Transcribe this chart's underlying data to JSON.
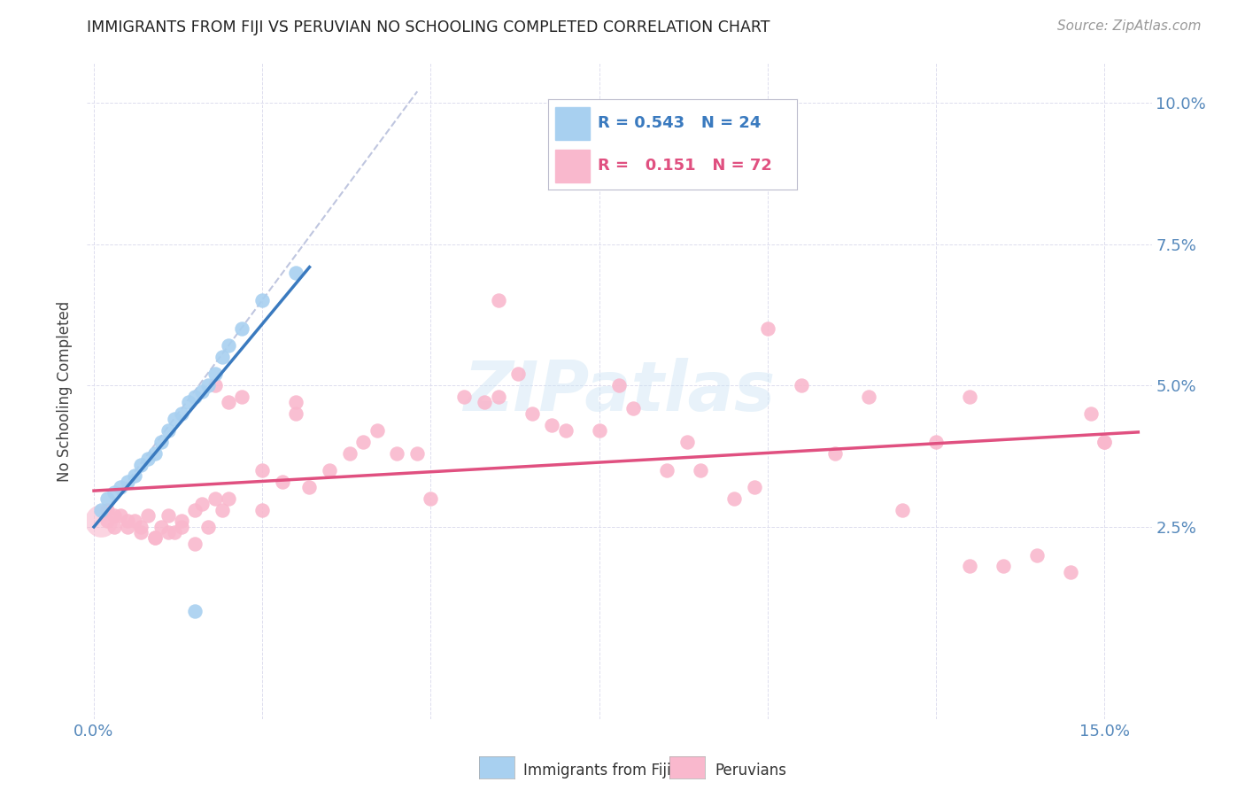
{
  "title": "IMMIGRANTS FROM FIJI VS PERUVIAN NO SCHOOLING COMPLETED CORRELATION CHART",
  "source": "Source: ZipAtlas.com",
  "ylabel": "No Schooling Completed",
  "fiji_R": 0.543,
  "fiji_N": 24,
  "peruvian_R": 0.151,
  "peruvian_N": 72,
  "fiji_color": "#a8d0f0",
  "fiji_line_color": "#3a7abf",
  "peruvian_color": "#f9b8cd",
  "peruvian_line_color": "#e05080",
  "dash_color": "#b0b8d8",
  "xlim": [
    -0.001,
    0.157
  ],
  "ylim": [
    -0.009,
    0.107
  ],
  "ytick_vals": [
    0.025,
    0.05,
    0.075,
    0.1
  ],
  "ytick_labels": [
    "2.5%",
    "5.0%",
    "7.5%",
    "10.0%"
  ],
  "xtick_vals": [
    0.0,
    0.025,
    0.05,
    0.075,
    0.1,
    0.125,
    0.15
  ],
  "background_color": "#ffffff",
  "fiji_x": [
    0.001,
    0.002,
    0.003,
    0.004,
    0.005,
    0.006,
    0.007,
    0.008,
    0.009,
    0.01,
    0.011,
    0.012,
    0.013,
    0.014,
    0.015,
    0.016,
    0.017,
    0.018,
    0.019,
    0.02,
    0.022,
    0.025,
    0.03,
    0.015
  ],
  "fiji_y": [
    0.028,
    0.03,
    0.031,
    0.032,
    0.033,
    0.034,
    0.036,
    0.037,
    0.038,
    0.04,
    0.042,
    0.044,
    0.045,
    0.047,
    0.048,
    0.049,
    0.05,
    0.052,
    0.055,
    0.057,
    0.06,
    0.065,
    0.07,
    0.01
  ],
  "fiji_sizes": [
    120,
    120,
    120,
    120,
    120,
    120,
    120,
    120,
    120,
    120,
    120,
    120,
    120,
    120,
    120,
    120,
    120,
    120,
    120,
    120,
    120,
    180,
    200,
    120
  ],
  "peruvian_x": [
    0.002,
    0.003,
    0.004,
    0.005,
    0.006,
    0.007,
    0.008,
    0.009,
    0.01,
    0.011,
    0.012,
    0.013,
    0.015,
    0.016,
    0.017,
    0.018,
    0.019,
    0.02,
    0.022,
    0.025,
    0.028,
    0.03,
    0.032,
    0.035,
    0.038,
    0.04,
    0.042,
    0.045,
    0.048,
    0.05,
    0.055,
    0.058,
    0.06,
    0.063,
    0.065,
    0.068,
    0.07,
    0.075,
    0.078,
    0.08,
    0.085,
    0.088,
    0.09,
    0.095,
    0.098,
    0.1,
    0.105,
    0.11,
    0.115,
    0.12,
    0.125,
    0.13,
    0.135,
    0.14,
    0.145,
    0.148,
    0.15,
    0.002,
    0.003,
    0.005,
    0.007,
    0.009,
    0.011,
    0.013,
    0.015,
    0.018,
    0.02,
    0.025,
    0.03,
    0.06,
    0.13,
    0.15
  ],
  "peruvian_y": [
    0.026,
    0.025,
    0.027,
    0.025,
    0.026,
    0.024,
    0.027,
    0.023,
    0.025,
    0.027,
    0.024,
    0.025,
    0.028,
    0.029,
    0.025,
    0.03,
    0.028,
    0.03,
    0.048,
    0.035,
    0.033,
    0.045,
    0.032,
    0.035,
    0.038,
    0.04,
    0.042,
    0.038,
    0.038,
    0.03,
    0.048,
    0.047,
    0.048,
    0.052,
    0.045,
    0.043,
    0.042,
    0.042,
    0.05,
    0.046,
    0.035,
    0.04,
    0.035,
    0.03,
    0.032,
    0.06,
    0.05,
    0.038,
    0.048,
    0.028,
    0.04,
    0.018,
    0.018,
    0.02,
    0.017,
    0.045,
    0.04,
    0.028,
    0.027,
    0.026,
    0.025,
    0.023,
    0.024,
    0.026,
    0.022,
    0.05,
    0.047,
    0.028,
    0.047,
    0.065,
    0.048,
    0.04
  ],
  "peruvian_sizes_large": [
    0,
    0,
    0,
    0,
    0,
    0,
    0,
    0,
    0,
    0,
    0,
    0,
    0,
    0,
    0,
    0,
    0,
    0,
    0,
    0,
    0,
    0,
    0,
    0,
    0,
    0,
    0,
    0,
    0,
    0,
    0,
    0,
    0,
    0,
    0,
    0,
    0,
    0,
    0,
    0,
    0,
    0,
    0,
    0,
    0,
    0,
    0,
    0,
    0,
    0,
    0,
    0,
    0,
    0,
    0,
    0,
    0,
    0,
    0,
    0,
    0,
    0,
    0,
    0,
    0,
    0,
    0,
    0,
    0,
    0,
    0,
    0
  ]
}
